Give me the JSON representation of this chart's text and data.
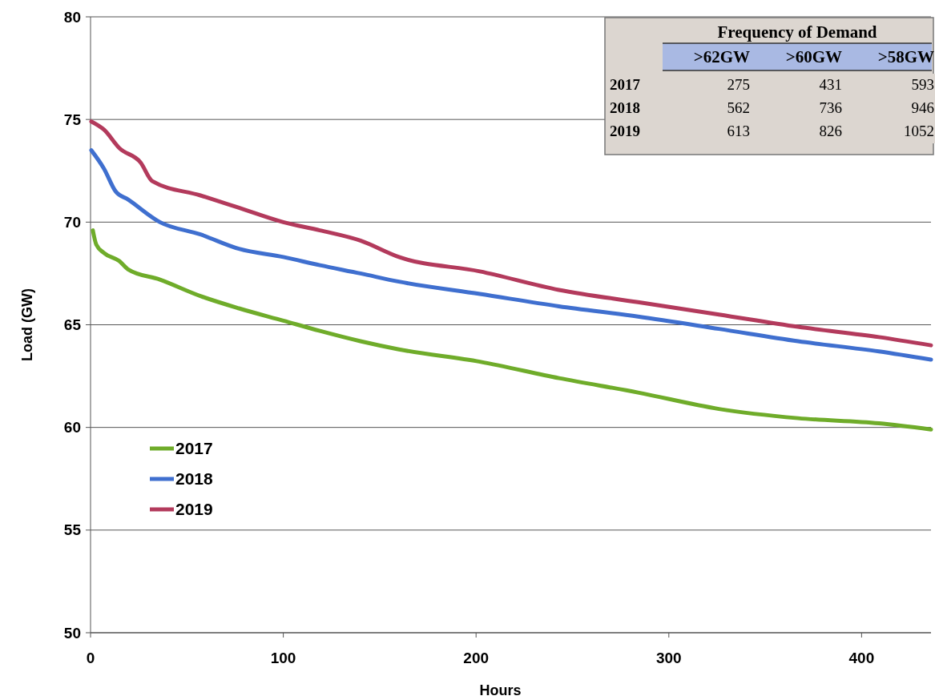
{
  "chart_data": [
    {
      "type": "line",
      "xlabel": "Hours",
      "ylabel": "Load (GW)",
      "xlim": [
        0,
        436
      ],
      "ylim": [
        50,
        80
      ],
      "xticks": [
        0,
        100,
        200,
        300,
        400
      ],
      "yticks": [
        50,
        55,
        60,
        65,
        70,
        75,
        80
      ],
      "grid": "y",
      "legend": "left",
      "line_style": "solid",
      "marker": "none",
      "series": [
        {
          "name": "2017",
          "color": "#6fac2a",
          "x": [
            1.2,
            3,
            7,
            15,
            19.5,
            36,
            57,
            77,
            100,
            119,
            140,
            160,
            202,
            243,
            284,
            326,
            367,
            409,
            436
          ],
          "values": [
            69.6,
            68.9,
            68.5,
            68.1,
            67.7,
            67.2,
            66.4,
            65.8,
            65.2,
            64.7,
            64.2,
            63.8,
            63.2,
            62.4,
            61.7,
            60.9,
            60.45,
            60.2,
            59.9
          ]
        },
        {
          "name": "2018",
          "color": "#3f6fcf",
          "x": [
            0.4,
            7,
            13,
            19.5,
            36,
            57,
            77,
            100,
            119,
            140,
            160,
            202,
            243,
            284,
            326,
            367,
            409,
            436
          ],
          "values": [
            73.5,
            72.6,
            71.5,
            71.1,
            70.0,
            69.4,
            68.7,
            68.3,
            67.9,
            67.5,
            67.1,
            66.5,
            65.9,
            65.4,
            64.8,
            64.2,
            63.7,
            63.3
          ]
        },
        {
          "name": "2019",
          "color": "#b33a5c",
          "x": [
            0.4,
            7,
            15,
            26,
            32,
            57,
            77,
            100,
            119,
            140,
            160,
            202,
            243,
            284,
            326,
            367,
            409,
            436
          ],
          "values": [
            74.9,
            74.5,
            73.6,
            72.9,
            72.0,
            71.3,
            70.7,
            70.0,
            69.6,
            69.1,
            68.3,
            67.6,
            66.7,
            66.1,
            65.5,
            64.9,
            64.4,
            64.0
          ]
        }
      ]
    },
    {
      "type": "heatmap",
      "data_labels": true,
      "color": "#dcd6d0",
      "title": "Frequency of Demand",
      "categories": [
        ">62GW",
        ">60GW",
        ">58GW"
      ],
      "y_categories": [
        "2017",
        "2018",
        "2019"
      ],
      "cells": [
        [
          275,
          431,
          593
        ],
        [
          562,
          736,
          946
        ],
        [
          613,
          826,
          1052
        ]
      ]
    }
  ]
}
